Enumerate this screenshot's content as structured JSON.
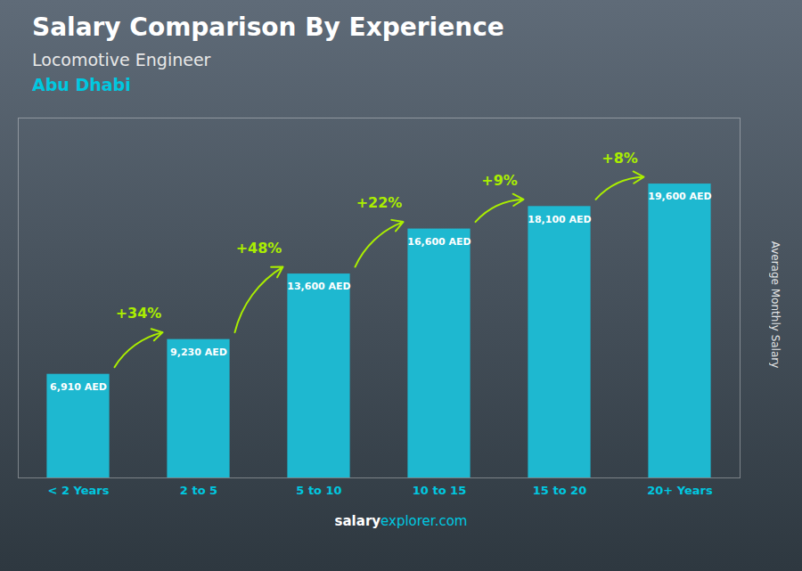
{
  "chart_data": {
    "type": "bar",
    "title": "Salary Comparison By Experience",
    "subtitle": "Locomotive Engineer",
    "city": "Abu Dhabi",
    "ylabel": "Average Monthly Salary",
    "footer": [
      "salary",
      "explorer.com"
    ],
    "categories": [
      "< 2 Years",
      "2 to 5",
      "5 to 10",
      "10 to 15",
      "15 to 20",
      "20+ Years"
    ],
    "values": [
      6910,
      9230,
      13600,
      16600,
      18100,
      19600
    ],
    "value_labels": [
      "6,910 AED",
      "9,230 AED",
      "13,600 AED",
      "16,600 AED",
      "18,100 AED",
      "19,600 AED"
    ],
    "data_labels": true,
    "color": "#1eb8d0",
    "annotations": [
      {
        "text": "+34%",
        "color": "#aaee00"
      },
      {
        "text": "+48%",
        "color": "#aaee00"
      },
      {
        "text": "+22%",
        "color": "#aaee00"
      },
      {
        "text": "+9%",
        "color": "#aaee00"
      },
      {
        "text": "+8%",
        "color": "#aaee00"
      }
    ],
    "ylim": [
      0,
      24000
    ],
    "tick_labels": "x",
    "grid": false
  }
}
